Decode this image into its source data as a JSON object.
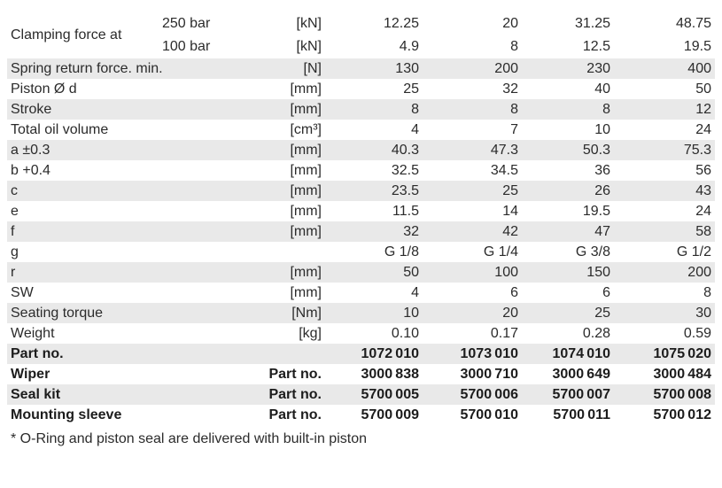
{
  "colors": {
    "stripe": "#e9e9e9",
    "text": "#2b2b2b",
    "background": "#ffffff"
  },
  "table": {
    "rows": [
      {
        "label": "Clamping force at",
        "shaded": false,
        "bold": false,
        "lines": [
          {
            "sub": "250 bar",
            "unit": "[kN]",
            "values": [
              "12.25",
              "20",
              "31.25",
              "48.75"
            ]
          },
          {
            "sub": "100 bar",
            "unit": "[kN]",
            "values": [
              "4.9",
              "8",
              "12.5",
              "19.5"
            ]
          }
        ]
      },
      {
        "label": "Spring return force. min.",
        "unit": "[N]",
        "values": [
          "130",
          "200",
          "230",
          "400"
        ],
        "shaded": true,
        "bold": false
      },
      {
        "label": "Piston Ø d",
        "unit": "[mm]",
        "values": [
          "25",
          "32",
          "40",
          "50"
        ],
        "shaded": false,
        "bold": false
      },
      {
        "label": "Stroke",
        "unit": "[mm]",
        "values": [
          "8",
          "8",
          "8",
          "12"
        ],
        "shaded": true,
        "bold": false
      },
      {
        "label": "Total oil volume",
        "unit": "[cm³]",
        "values": [
          "4",
          "7",
          "10",
          "24"
        ],
        "shaded": false,
        "bold": false
      },
      {
        "label": "a ±0.3",
        "unit": "[mm]",
        "values": [
          "40.3",
          "47.3",
          "50.3",
          "75.3"
        ],
        "shaded": true,
        "bold": false
      },
      {
        "label": "b +0.4",
        "unit": "[mm]",
        "values": [
          "32.5",
          "34.5",
          "36",
          "56"
        ],
        "shaded": false,
        "bold": false
      },
      {
        "label": "c",
        "unit": "[mm]",
        "values": [
          "23.5",
          "25",
          "26",
          "43"
        ],
        "shaded": true,
        "bold": false
      },
      {
        "label": "e",
        "unit": "[mm]",
        "values": [
          "11.5",
          "14",
          "19.5",
          "24"
        ],
        "shaded": false,
        "bold": false
      },
      {
        "label": "f",
        "unit": "[mm]",
        "values": [
          "32",
          "42",
          "47",
          "58"
        ],
        "shaded": true,
        "bold": false
      },
      {
        "label": "g",
        "unit": "",
        "values": [
          "G 1/8",
          "G 1/4",
          "G 3/8",
          "G 1/2"
        ],
        "shaded": false,
        "bold": false
      },
      {
        "label": "r",
        "unit": "[mm]",
        "values": [
          "50",
          "100",
          "150",
          "200"
        ],
        "shaded": true,
        "bold": false
      },
      {
        "label": "SW",
        "unit": "[mm]",
        "values": [
          "4",
          "6",
          "6",
          "8"
        ],
        "shaded": false,
        "bold": false
      },
      {
        "label": "Seating torque",
        "unit": "[Nm]",
        "values": [
          "10",
          "20",
          "25",
          "30"
        ],
        "shaded": true,
        "bold": false
      },
      {
        "label": "Weight",
        "unit": "[kg]",
        "values": [
          "0.10",
          "0.17",
          "0.28",
          "0.59"
        ],
        "shaded": false,
        "bold": false
      },
      {
        "label": "Part no.",
        "unit": "",
        "values": [
          "1072 010",
          "1073 010",
          "1074 010",
          "1075 020"
        ],
        "shaded": true,
        "bold": true
      },
      {
        "label": "Wiper",
        "mid": "Part no.",
        "values": [
          "3000 838",
          "3000 710",
          "3000 649",
          "3000 484"
        ],
        "shaded": false,
        "bold": true
      },
      {
        "label": "Seal kit",
        "mid": "Part no.",
        "values": [
          "5700 005",
          "5700 006",
          "5700 007",
          "5700 008"
        ],
        "shaded": true,
        "bold": true
      },
      {
        "label": "Mounting sleeve",
        "mid": "Part no.",
        "values": [
          "5700 009",
          "5700 010",
          "5700 011",
          "5700 012"
        ],
        "shaded": false,
        "bold": true
      }
    ]
  },
  "footnote": "* O-Ring and piston seal are delivered with built-in piston"
}
